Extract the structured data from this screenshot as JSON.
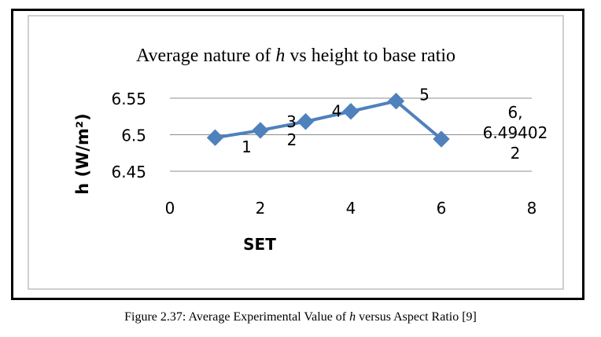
{
  "chart_data": {
    "type": "line",
    "title_parts": {
      "prefix": "Average nature of ",
      "italic": "h",
      "suffix": " vs height to base ratio"
    },
    "xlabel": "SET",
    "ylabel": "h (W/m²)",
    "x_ticks": [
      "0",
      "2",
      "4",
      "6",
      "8"
    ],
    "y_ticks": [
      "6.55",
      "6.5",
      "6.45"
    ],
    "xlim": [
      0,
      8
    ],
    "ylim": [
      6.45,
      6.55
    ],
    "grid": "horizontal",
    "series": [
      {
        "color": "#4f81bd",
        "x": [
          1,
          2,
          3,
          4,
          5,
          6
        ],
        "y": [
          6.496,
          6.506,
          6.518,
          6.532,
          6.546,
          6.49402
        ],
        "labels": [
          "1",
          "2",
          "3",
          "4",
          "5",
          "6,\n6.49402\n2"
        ]
      }
    ]
  },
  "caption": {
    "prefix": "Figure 2.37: Average Experimental Value of ",
    "italic": "h",
    "suffix": " versus Aspect Ratio [9]"
  }
}
